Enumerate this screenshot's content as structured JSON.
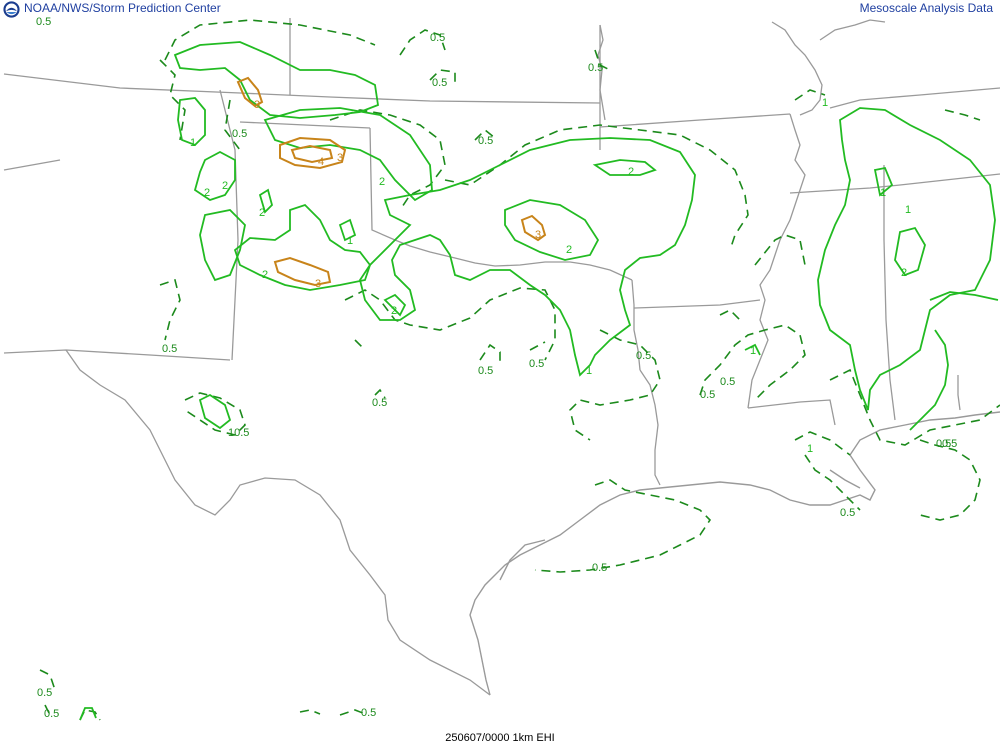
{
  "header": {
    "left_text": "NOAA/NWS/Storm Prediction Center",
    "right_text": "Mesoscale Analysis Data"
  },
  "footer": {
    "valid_label": "250607/0000 1km EHI"
  },
  "legend_colors": {
    "level_0_5": "#1c8a1c",
    "level_1_2": "#22bb22",
    "level_3_4": "#c8841a",
    "boundaries": "#9a9a9a"
  },
  "contour_labels": {
    "l01": "0.5",
    "l02": "0.5",
    "l03": "0.5",
    "l04": "0.5",
    "l05": "0.5",
    "l06": "3",
    "l07": "1",
    "l08": "0.5",
    "l09": "4",
    "l10": "3",
    "l11": "2",
    "l12": "2",
    "l13": "2",
    "l14": "2",
    "l15": "1",
    "l16": "2",
    "l17": "3",
    "l18": "2",
    "l19": "3",
    "l20": "2",
    "l21": "2",
    "l22": "0.5",
    "l23": "0.5",
    "l24": "0.5",
    "l25": "0.5",
    "l26": "0.5",
    "l27": "1",
    "l28": "0.5",
    "l29": "0.5",
    "l30": "10.5",
    "l31": "1",
    "l32": "1",
    "l33": "1",
    "l34": "2",
    "l35": "0.5",
    "l36": "0.5",
    "l37": "0.5",
    "l38": "0.5",
    "l39": "0.5",
    "l40": "0.5",
    "l41": "1",
    "l42": "1",
    "l43": "0.5"
  }
}
